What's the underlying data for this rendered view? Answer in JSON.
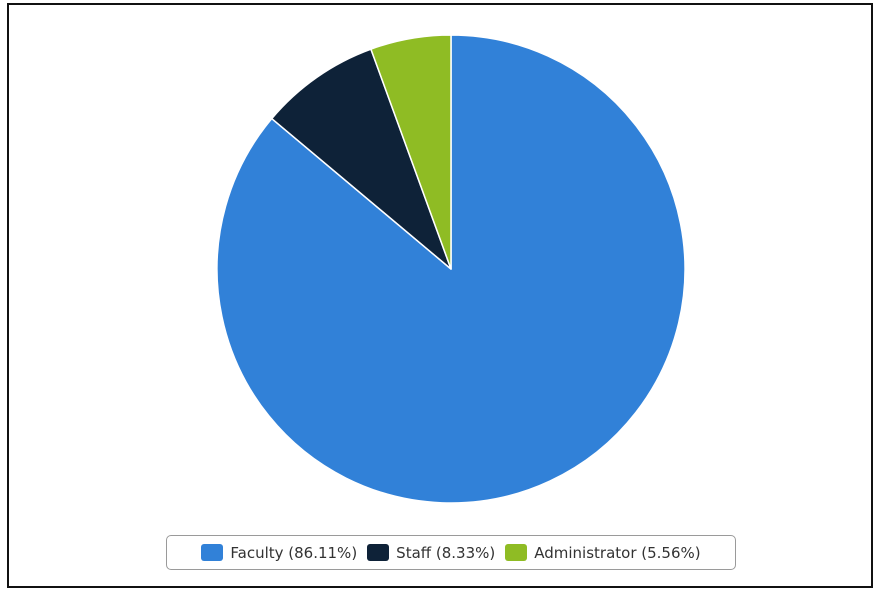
{
  "chart_data": {
    "type": "pie",
    "slices": [
      {
        "label": "Faculty",
        "value": 86.11,
        "display": "Faculty (86.11%)",
        "color": "#3181d8"
      },
      {
        "label": "Staff",
        "value": 8.33,
        "display": "Staff (8.33%)",
        "color": "#0e2238"
      },
      {
        "label": "Administrator",
        "value": 5.56,
        "display": "Administrator (5.56%)",
        "color": "#8fbc24"
      }
    ],
    "start_angle": "12 o'clock",
    "direction": "clockwise",
    "legend_position": "bottom-center",
    "slice_border_color": "#ffffff"
  }
}
